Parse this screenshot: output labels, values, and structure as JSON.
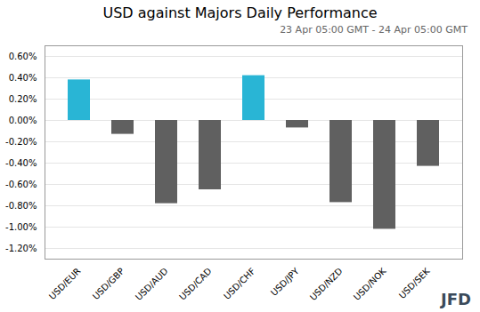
{
  "chart_data": {
    "type": "bar",
    "title": "USD against Majors Daily Performance",
    "subtitle": "23 Apr 05:00 GMT - 24 Apr  05:00 GMT",
    "annotations": [
      "JFD"
    ],
    "categories": [
      "USD/EUR",
      "USD/GBP",
      "USD/AUD",
      "USD/CAD",
      "USD/CHF",
      "USD/JPY",
      "USD/NZD",
      "USD/NOK",
      "USD/SEK"
    ],
    "values": [
      0.0038,
      -0.0013,
      -0.0078,
      -0.0065,
      0.0042,
      -0.0007,
      -0.0077,
      -0.0102,
      -0.0043
    ],
    "colors": [
      "#29b5d5",
      "#606060",
      "#606060",
      "#606060",
      "#29b5d5",
      "#606060",
      "#606060",
      "#606060",
      "#606060"
    ],
    "ylim": [
      -0.013,
      0.007
    ],
    "yticks": [
      {
        "value": -0.012,
        "label": "-1.20%"
      },
      {
        "value": -0.01,
        "label": "-1.00%"
      },
      {
        "value": -0.008,
        "label": "-0.80%"
      },
      {
        "value": -0.006,
        "label": "-0.60%"
      },
      {
        "value": -0.004,
        "label": "-0.40%"
      },
      {
        "value": -0.002,
        "label": "-0.20%"
      },
      {
        "value": 0,
        "label": "0.00%"
      },
      {
        "value": 0.002,
        "label": "0.20%"
      },
      {
        "value": 0.004,
        "label": "0.40%"
      },
      {
        "value": 0.006,
        "label": "0.60%"
      }
    ],
    "grid": true
  }
}
